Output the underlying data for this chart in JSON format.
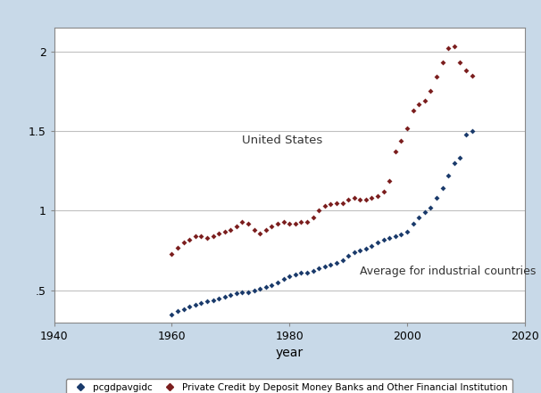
{
  "title": "",
  "xlabel": "year",
  "ylabel": "",
  "xlim": [
    1940,
    2020
  ],
  "ylim": [
    0.3,
    2.15
  ],
  "yticks": [
    0.5,
    1.0,
    1.5,
    2.0
  ],
  "ytick_labels": [
    ".5",
    "1",
    "1.5",
    "2"
  ],
  "xticks": [
    1940,
    1960,
    1980,
    2000,
    2020
  ],
  "bg_color": "#c8d9e8",
  "plot_bg_color": "#ffffff",
  "annotation_us": "United States",
  "annotation_avg": "Average for industrial countries",
  "legend_label1": "pcgdpavgidc",
  "legend_label2": "Private Credit by Deposit Money Banks and Other Financial Institution",
  "color1": "#1a3a6b",
  "color2": "#7b1e1e",
  "us_years": [
    1960,
    1961,
    1962,
    1963,
    1964,
    1965,
    1966,
    1967,
    1968,
    1969,
    1970,
    1971,
    1972,
    1973,
    1974,
    1975,
    1976,
    1977,
    1978,
    1979,
    1980,
    1981,
    1982,
    1983,
    1984,
    1985,
    1986,
    1987,
    1988,
    1989,
    1990,
    1991,
    1992,
    1993,
    1994,
    1995,
    1996,
    1997,
    1998,
    1999,
    2000,
    2001,
    2002,
    2003,
    2004,
    2005,
    2006,
    2007,
    2008,
    2009,
    2010,
    2011
  ],
  "us_values": [
    0.73,
    0.77,
    0.8,
    0.82,
    0.84,
    0.84,
    0.83,
    0.84,
    0.86,
    0.87,
    0.88,
    0.9,
    0.93,
    0.92,
    0.88,
    0.86,
    0.88,
    0.9,
    0.92,
    0.93,
    0.92,
    0.92,
    0.93,
    0.93,
    0.96,
    1.0,
    1.03,
    1.04,
    1.05,
    1.05,
    1.07,
    1.08,
    1.07,
    1.07,
    1.08,
    1.09,
    1.12,
    1.19,
    1.37,
    1.44,
    1.52,
    1.63,
    1.67,
    1.69,
    1.75,
    1.84,
    1.93,
    2.02,
    2.03,
    1.93,
    1.88,
    1.85
  ],
  "avg_years": [
    1960,
    1961,
    1962,
    1963,
    1964,
    1965,
    1966,
    1967,
    1968,
    1969,
    1970,
    1971,
    1972,
    1973,
    1974,
    1975,
    1976,
    1977,
    1978,
    1979,
    1980,
    1981,
    1982,
    1983,
    1984,
    1985,
    1986,
    1987,
    1988,
    1989,
    1990,
    1991,
    1992,
    1993,
    1994,
    1995,
    1996,
    1997,
    1998,
    1999,
    2000,
    2001,
    2002,
    2003,
    2004,
    2005,
    2006,
    2007,
    2008,
    2009,
    2010,
    2011
  ],
  "avg_values": [
    0.35,
    0.37,
    0.38,
    0.4,
    0.41,
    0.42,
    0.43,
    0.44,
    0.45,
    0.46,
    0.47,
    0.48,
    0.49,
    0.49,
    0.5,
    0.51,
    0.52,
    0.53,
    0.55,
    0.57,
    0.59,
    0.6,
    0.61,
    0.61,
    0.62,
    0.64,
    0.65,
    0.66,
    0.67,
    0.69,
    0.72,
    0.74,
    0.75,
    0.76,
    0.78,
    0.8,
    0.82,
    0.83,
    0.84,
    0.85,
    0.87,
    0.92,
    0.96,
    0.99,
    1.02,
    1.08,
    1.14,
    1.22,
    1.3,
    1.33,
    1.48,
    1.5
  ]
}
